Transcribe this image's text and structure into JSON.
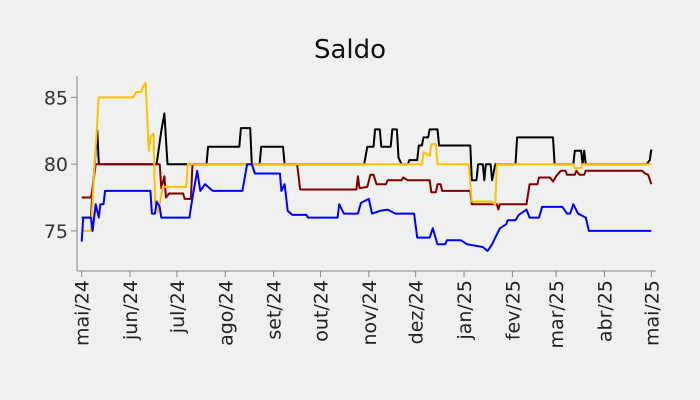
{
  "chart_data": {
    "type": "line",
    "title": "Saldo",
    "xlabel": "",
    "ylabel": "",
    "ylim": [
      72.0,
      86.6
    ],
    "xlim": [
      "2024-04-28",
      "2025-05-04"
    ],
    "grid": false,
    "legend": "none",
    "y_ticks": [
      75,
      80,
      85
    ],
    "x_ticks": [
      {
        "date": "2024-05-01",
        "label": "mai/24"
      },
      {
        "date": "2024-06-01",
        "label": "jun/24"
      },
      {
        "date": "2024-07-01",
        "label": "jul/24"
      },
      {
        "date": "2024-08-01",
        "label": "ago/24"
      },
      {
        "date": "2024-09-01",
        "label": "set/24"
      },
      {
        "date": "2024-10-01",
        "label": "out/24"
      },
      {
        "date": "2024-11-01",
        "label": "nov/24"
      },
      {
        "date": "2024-12-01",
        "label": "dez/24"
      },
      {
        "date": "2025-01-01",
        "label": "jan/25"
      },
      {
        "date": "2025-02-01",
        "label": "fev/25"
      },
      {
        "date": "2025-03-01",
        "label": "mar/25"
      },
      {
        "date": "2025-04-01",
        "label": "abr/25"
      },
      {
        "date": "2025-05-01",
        "label": "mai/25"
      }
    ],
    "series": [
      {
        "color": "#000000",
        "points": [
          [
            "2024-05-01",
            76.0
          ],
          [
            "2024-05-07",
            76.0
          ],
          [
            "2024-05-08",
            78.0
          ],
          [
            "2024-05-11",
            82.5
          ],
          [
            "2024-05-12",
            80.0
          ],
          [
            "2024-06-18",
            80.0
          ],
          [
            "2024-06-21",
            82.5
          ],
          [
            "2024-06-23",
            83.8
          ],
          [
            "2024-06-25",
            80.0
          ],
          [
            "2024-07-20",
            80.0
          ],
          [
            "2024-07-21",
            81.3
          ],
          [
            "2024-08-10",
            81.3
          ],
          [
            "2024-08-11",
            82.7
          ],
          [
            "2024-08-17",
            82.7
          ],
          [
            "2024-08-18",
            80.0
          ],
          [
            "2024-08-23",
            80.0
          ],
          [
            "2024-08-24",
            81.3
          ],
          [
            "2024-09-07",
            81.3
          ],
          [
            "2024-09-08",
            80.0
          ],
          [
            "2024-10-29",
            80.0
          ],
          [
            "2024-10-31",
            81.3
          ],
          [
            "2024-11-04",
            81.3
          ],
          [
            "2024-11-05",
            82.6
          ],
          [
            "2024-11-08",
            82.6
          ],
          [
            "2024-11-09",
            81.3
          ],
          [
            "2024-11-15",
            81.3
          ],
          [
            "2024-11-16",
            82.6
          ],
          [
            "2024-11-19",
            82.6
          ],
          [
            "2024-11-20",
            80.5
          ],
          [
            "2024-11-22",
            80.0
          ],
          [
            "2024-11-26",
            80.0
          ],
          [
            "2024-11-27",
            80.3
          ],
          [
            "2024-12-02",
            80.3
          ],
          [
            "2024-12-03",
            81.4
          ],
          [
            "2024-12-05",
            81.4
          ],
          [
            "2024-12-06",
            82.0
          ],
          [
            "2024-12-09",
            82.0
          ],
          [
            "2024-12-10",
            82.6
          ],
          [
            "2024-12-15",
            82.6
          ],
          [
            "2024-12-16",
            81.4
          ],
          [
            "2025-01-05",
            81.4
          ],
          [
            "2025-01-06",
            78.8
          ],
          [
            "2025-01-09",
            78.8
          ],
          [
            "2025-01-10",
            80.0
          ],
          [
            "2025-01-13",
            80.0
          ],
          [
            "2025-01-14",
            78.8
          ],
          [
            "2025-01-15",
            80.0
          ],
          [
            "2025-01-18",
            80.0
          ],
          [
            "2025-01-19",
            78.8
          ],
          [
            "2025-01-21",
            80.0
          ],
          [
            "2025-02-03",
            80.0
          ],
          [
            "2025-02-04",
            82.0
          ],
          [
            "2025-02-27",
            82.0
          ],
          [
            "2025-02-28",
            80.0
          ],
          [
            "2025-03-12",
            80.0
          ],
          [
            "2025-03-13",
            81.0
          ],
          [
            "2025-03-17",
            81.0
          ],
          [
            "2025-03-18",
            80.0
          ],
          [
            "2025-03-19",
            81.0
          ],
          [
            "2025-03-20",
            80.0
          ],
          [
            "2025-04-28",
            80.0
          ],
          [
            "2025-04-30",
            80.3
          ],
          [
            "2025-05-01",
            81.1
          ]
        ]
      },
      {
        "color": "#800000",
        "points": [
          [
            "2024-05-01",
            77.5
          ],
          [
            "2024-05-07",
            77.5
          ],
          [
            "2024-05-08",
            78.2
          ],
          [
            "2024-05-10",
            80.0
          ],
          [
            "2024-06-20",
            80.0
          ],
          [
            "2024-06-21",
            78.2
          ],
          [
            "2024-06-23",
            79.1
          ],
          [
            "2024-06-24",
            77.5
          ],
          [
            "2024-06-26",
            77.8
          ],
          [
            "2024-07-05",
            77.8
          ],
          [
            "2024-07-06",
            77.4
          ],
          [
            "2024-07-10",
            77.4
          ],
          [
            "2024-07-11",
            80.0
          ],
          [
            "2024-09-16",
            80.0
          ],
          [
            "2024-09-18",
            78.1
          ],
          [
            "2024-10-24",
            78.1
          ],
          [
            "2024-10-25",
            79.1
          ],
          [
            "2024-10-26",
            78.2
          ],
          [
            "2024-10-31",
            78.3
          ],
          [
            "2024-11-02",
            79.2
          ],
          [
            "2024-11-04",
            79.2
          ],
          [
            "2024-11-06",
            78.5
          ],
          [
            "2024-11-12",
            78.5
          ],
          [
            "2024-11-13",
            78.8
          ],
          [
            "2024-11-22",
            78.8
          ],
          [
            "2024-11-23",
            79.0
          ],
          [
            "2024-11-26",
            78.8
          ],
          [
            "2024-12-10",
            78.8
          ],
          [
            "2024-12-11",
            77.9
          ],
          [
            "2024-12-14",
            77.9
          ],
          [
            "2024-12-15",
            78.5
          ],
          [
            "2024-12-17",
            78.5
          ],
          [
            "2024-12-18",
            78.0
          ],
          [
            "2025-01-05",
            78.0
          ],
          [
            "2025-01-06",
            77.0
          ],
          [
            "2025-01-22",
            77.0
          ],
          [
            "2025-01-23",
            76.6
          ],
          [
            "2025-01-24",
            77.0
          ],
          [
            "2025-02-10",
            77.0
          ],
          [
            "2025-02-12",
            78.5
          ],
          [
            "2025-02-17",
            78.5
          ],
          [
            "2025-02-18",
            79.0
          ],
          [
            "2025-02-25",
            79.0
          ],
          [
            "2025-02-27",
            78.7
          ],
          [
            "2025-03-01",
            79.1
          ],
          [
            "2025-03-04",
            79.5
          ],
          [
            "2025-03-07",
            79.5
          ],
          [
            "2025-03-08",
            79.2
          ],
          [
            "2025-03-13",
            79.2
          ],
          [
            "2025-03-14",
            79.5
          ],
          [
            "2025-03-16",
            79.2
          ],
          [
            "2025-03-19",
            79.2
          ],
          [
            "2025-03-20",
            79.5
          ],
          [
            "2025-04-25",
            79.5
          ],
          [
            "2025-04-27",
            79.3
          ],
          [
            "2025-04-29",
            79.2
          ],
          [
            "2025-05-01",
            78.5
          ]
        ]
      },
      {
        "color": "#ffc000",
        "points": [
          [
            "2024-05-01",
            75.0
          ],
          [
            "2024-05-07",
            75.0
          ],
          [
            "2024-05-09",
            79.5
          ],
          [
            "2024-05-12",
            85.0
          ],
          [
            "2024-06-03",
            85.0
          ],
          [
            "2024-06-05",
            85.4
          ],
          [
            "2024-06-08",
            85.4
          ],
          [
            "2024-06-09",
            85.7
          ],
          [
            "2024-06-11",
            86.1
          ],
          [
            "2024-06-13",
            81.0
          ],
          [
            "2024-06-14",
            82.0
          ],
          [
            "2024-06-16",
            82.3
          ],
          [
            "2024-06-17",
            77.2
          ],
          [
            "2024-06-19",
            76.4
          ],
          [
            "2024-06-21",
            77.7
          ],
          [
            "2024-06-22",
            78.3
          ],
          [
            "2024-07-07",
            78.3
          ],
          [
            "2024-07-08",
            80.0
          ],
          [
            "2024-12-05",
            80.0
          ],
          [
            "2024-12-06",
            80.9
          ],
          [
            "2024-12-10",
            80.6
          ],
          [
            "2024-12-11",
            81.5
          ],
          [
            "2024-12-14",
            81.5
          ],
          [
            "2024-12-15",
            80.0
          ],
          [
            "2025-01-04",
            80.0
          ],
          [
            "2025-01-06",
            77.2
          ],
          [
            "2025-01-18",
            77.2
          ],
          [
            "2025-01-21",
            77.0
          ],
          [
            "2025-01-22",
            80.0
          ],
          [
            "2025-03-12",
            80.0
          ],
          [
            "2025-03-13",
            79.7
          ],
          [
            "2025-03-17",
            79.7
          ],
          [
            "2025-03-18",
            80.0
          ],
          [
            "2025-05-01",
            80.0
          ]
        ]
      },
      {
        "color": "#0000ff",
        "points": [
          [
            "2024-05-01",
            74.2
          ],
          [
            "2024-05-02",
            76.0
          ],
          [
            "2024-05-07",
            76.0
          ],
          [
            "2024-05-08",
            75.0
          ],
          [
            "2024-05-10",
            77.0
          ],
          [
            "2024-05-12",
            76.0
          ],
          [
            "2024-05-13",
            77.0
          ],
          [
            "2024-05-15",
            77.0
          ],
          [
            "2024-05-16",
            78.0
          ],
          [
            "2024-06-14",
            78.0
          ],
          [
            "2024-06-15",
            76.3
          ],
          [
            "2024-06-17",
            76.3
          ],
          [
            "2024-06-18",
            77.2
          ],
          [
            "2024-06-20",
            76.8
          ],
          [
            "2024-06-21",
            76.0
          ],
          [
            "2024-07-09",
            76.0
          ],
          [
            "2024-07-11",
            77.5
          ],
          [
            "2024-07-14",
            79.5
          ],
          [
            "2024-07-16",
            78.0
          ],
          [
            "2024-07-19",
            78.5
          ],
          [
            "2024-07-24",
            78.0
          ],
          [
            "2024-08-12",
            78.0
          ],
          [
            "2024-08-15",
            80.0
          ],
          [
            "2024-08-18",
            80.0
          ],
          [
            "2024-08-20",
            79.3
          ],
          [
            "2024-09-05",
            79.3
          ],
          [
            "2024-09-06",
            78.0
          ],
          [
            "2024-09-08",
            78.5
          ],
          [
            "2024-09-10",
            76.5
          ],
          [
            "2024-09-13",
            76.2
          ],
          [
            "2024-09-22",
            76.2
          ],
          [
            "2024-09-23",
            76.0
          ],
          [
            "2024-10-12",
            76.0
          ],
          [
            "2024-10-13",
            77.0
          ],
          [
            "2024-10-16",
            76.3
          ],
          [
            "2024-10-25",
            76.3
          ],
          [
            "2024-10-27",
            77.1
          ],
          [
            "2024-11-01",
            77.4
          ],
          [
            "2024-11-03",
            76.3
          ],
          [
            "2024-11-08",
            76.5
          ],
          [
            "2024-11-13",
            76.6
          ],
          [
            "2024-11-18",
            76.3
          ],
          [
            "2024-11-30",
            76.3
          ],
          [
            "2024-12-02",
            74.5
          ],
          [
            "2024-12-10",
            74.5
          ],
          [
            "2024-12-12",
            75.2
          ],
          [
            "2024-12-15",
            74.0
          ],
          [
            "2024-12-20",
            74.0
          ],
          [
            "2024-12-21",
            74.3
          ],
          [
            "2024-12-30",
            74.3
          ],
          [
            "2025-01-03",
            74.0
          ],
          [
            "2025-01-13",
            73.8
          ],
          [
            "2025-01-16",
            73.5
          ],
          [
            "2025-01-19",
            74.0
          ],
          [
            "2025-01-21",
            74.5
          ],
          [
            "2025-01-24",
            75.2
          ],
          [
            "2025-01-28",
            75.5
          ],
          [
            "2025-01-29",
            75.8
          ],
          [
            "2025-02-03",
            75.8
          ],
          [
            "2025-02-05",
            76.2
          ],
          [
            "2025-02-10",
            76.6
          ],
          [
            "2025-02-12",
            76.0
          ],
          [
            "2025-02-18",
            76.0
          ],
          [
            "2025-02-20",
            76.8
          ],
          [
            "2025-03-05",
            76.8
          ],
          [
            "2025-03-08",
            76.3
          ],
          [
            "2025-03-10",
            76.3
          ],
          [
            "2025-03-12",
            77.0
          ],
          [
            "2025-03-15",
            76.3
          ],
          [
            "2025-03-20",
            76.0
          ],
          [
            "2025-03-22",
            75.0
          ],
          [
            "2025-05-01",
            75.0
          ]
        ]
      }
    ]
  }
}
